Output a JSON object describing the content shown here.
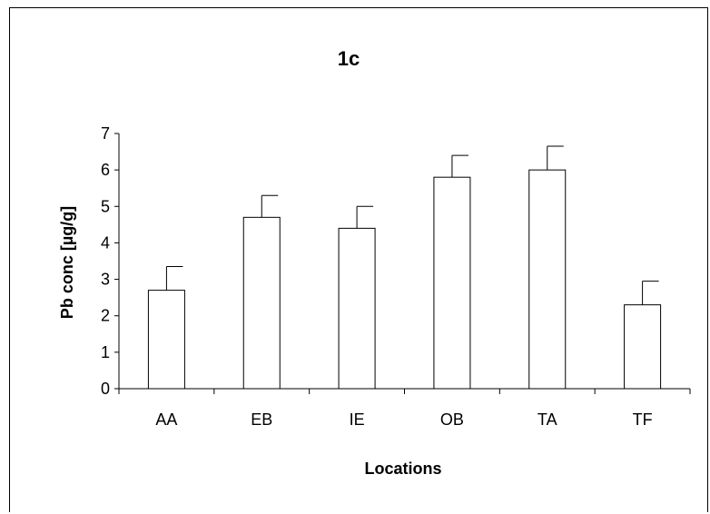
{
  "chart_data": {
    "type": "bar",
    "title": "1c",
    "xlabel": "Locations",
    "ylabel": "Pb conc [µg/g]",
    "categories": [
      "AA",
      "EB",
      "IE",
      "OB",
      "TA",
      "TF"
    ],
    "values": [
      2.7,
      4.7,
      4.4,
      5.8,
      6.0,
      2.3
    ],
    "error_bars": [
      0.65,
      0.6,
      0.6,
      0.6,
      0.65,
      0.65
    ],
    "ylim": [
      0,
      7
    ],
    "yticks": [
      0,
      1,
      2,
      3,
      4,
      5,
      6,
      7
    ],
    "grid": false,
    "legend": "none",
    "colors": {
      "bar_fill": "#ffffff",
      "bar_stroke": "#000000"
    }
  }
}
